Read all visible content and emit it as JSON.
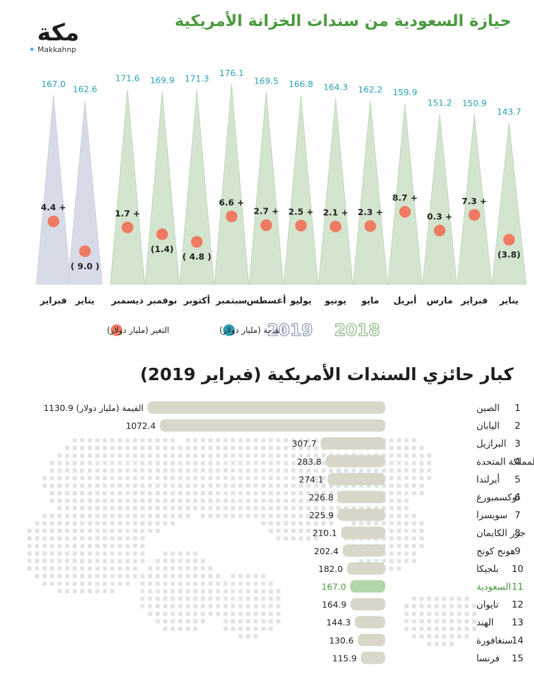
{
  "brand": {
    "logo_text": "مكة",
    "handle": "Makkahnp"
  },
  "title": "حيازة السعودية من سندات الخزانة الأمريكية",
  "section2_title": "كبار حائزي السندات الأمريكية (فبراير 2019)",
  "colors": {
    "green_bar": "#d3e4cf",
    "green_bar_edge": "#b9d3b3",
    "blue_bar": "#d7dbe8",
    "dot": "#ee7b62",
    "value_text": "#2aa0b5",
    "title_green": "#4a9a3f",
    "hbar": "#d8d7c9",
    "hbar_highlight": "#b3d6a8"
  },
  "legend": {
    "year_2019": "2019",
    "year_2018": "2018",
    "value_label": "القيمة (مليار دولار)",
    "change_label": "التغير (مليار دولار)"
  },
  "chart_data": [
    {
      "type": "bar",
      "title": "حيازة السعودية من سندات الخزانة الأمريكية",
      "unit": "مليار دولار",
      "ylim": [
        0,
        180
      ],
      "series": [
        {
          "name": "2019",
          "categories": [
            "فبراير",
            "يناير"
          ],
          "values": [
            167.0,
            162.6
          ],
          "value_labels": [
            "167.0",
            "162.6"
          ],
          "changes": [
            4.4,
            -9.0
          ],
          "change_labels": [
            "4.4 +",
            "( 9.0 )"
          ]
        },
        {
          "name": "2018",
          "categories": [
            "ديسمبر",
            "نوفمبر",
            "أكتوبر",
            "سبتمبر",
            "أغسطس",
            "يوليو",
            "يونيو",
            "مايو",
            "أبريل",
            "مارس",
            "فبراير",
            "يناير"
          ],
          "values": [
            171.6,
            169.9,
            171.3,
            176.1,
            169.5,
            166.8,
            164.3,
            162.2,
            159.9,
            151.2,
            150.9,
            143.7
          ],
          "value_labels": [
            "171.6",
            "169.9",
            "171.3",
            "176.1",
            "169.5",
            "166.8",
            "164.3",
            "162.2",
            "159.9",
            "151.2",
            "150.9",
            "143.7"
          ],
          "changes": [
            1.7,
            -1.4,
            -4.8,
            6.6,
            2.7,
            2.5,
            2.1,
            2.3,
            8.7,
            0.3,
            7.3,
            -3.8
          ],
          "change_labels": [
            "1.7 +",
            "(1.4)",
            "( 4.8 )",
            "6.6 +",
            "2.7 +",
            "2.5 +",
            "2.1 +",
            "2.3 +",
            "8.7 +",
            "0.3 +",
            "7.3 +",
            "(3.8)"
          ]
        }
      ]
    },
    {
      "type": "bar",
      "orientation": "horizontal",
      "title": "كبار حائزي السندات الأمريكية (فبراير 2019)",
      "unit": "مليار دولار",
      "first_value_suffix": "القيمة (مليار دولار)",
      "ranks": [
        "1",
        "2",
        "3",
        "4",
        "5",
        "6",
        "7",
        "8",
        "9",
        "10",
        "11",
        "12",
        "13",
        "14",
        "15"
      ],
      "categories": [
        "الصين",
        "اليابان",
        "البرازيل",
        "المملكة المتحدة",
        "أيرلندا",
        "لوكسمبورغ",
        "سويسرا",
        "جزر الكايمان",
        "هونج كونج",
        "بلجيكا",
        "السعودية",
        "تايوان",
        "الهند",
        "سنغافورة",
        "فرنسا"
      ],
      "values": [
        1130.9,
        1072.4,
        307.7,
        283.8,
        274.1,
        226.8,
        225.9,
        210.1,
        202.4,
        182.0,
        167.0,
        164.9,
        144.3,
        130.6,
        115.9
      ],
      "value_labels": [
        "1130.9",
        "1072.4",
        "307.7",
        "283.8",
        "274.1",
        "226.8",
        "225.9",
        "210.1",
        "202.4",
        "182.0",
        "167.0",
        "164.9",
        "144.3",
        "130.6",
        "115.9"
      ],
      "highlight": "السعودية"
    }
  ]
}
